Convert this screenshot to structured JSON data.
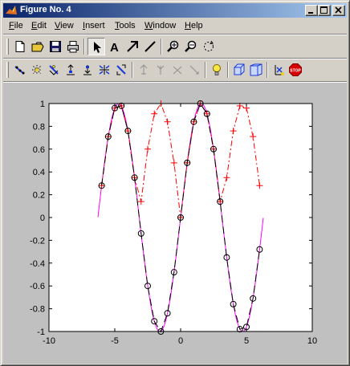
{
  "window": {
    "title": "Figure No. 4"
  },
  "menu": [
    {
      "label": "File",
      "u": "F",
      "rest": "ile"
    },
    {
      "label": "Edit",
      "u": "E",
      "rest": "dit"
    },
    {
      "label": "View",
      "u": "V",
      "rest": "iew"
    },
    {
      "label": "Insert",
      "u": "I",
      "rest": "nsert"
    },
    {
      "label": "Tools",
      "u": "T",
      "rest": "ools"
    },
    {
      "label": "Window",
      "u": "W",
      "rest": "indow"
    },
    {
      "label": "Help",
      "u": "H",
      "rest": "elp"
    }
  ],
  "toolbar_icons": {
    "main": [
      "new-figure-icon",
      "open-file-icon",
      "save-icon",
      "print-icon",
      "edit-plot-arrow-icon",
      "insert-text-icon",
      "insert-arrow-icon",
      "insert-line-icon",
      "zoom-in-icon",
      "zoom-out-icon",
      "rotate-3d-icon"
    ],
    "camera": [
      "orbit-camera-icon",
      "orbit-light-icon",
      "pan-tilt-camera-icon",
      "move-camera-icon",
      "move-camera-forward-icon",
      "zoom-camera-icon",
      "roll-camera-icon",
      "principal-axis-x-icon",
      "principal-axis-y-icon",
      "principal-axis-z-icon",
      "principal-axis-none-icon",
      "scene-light-icon",
      "orthographic-projection-icon",
      "perspective-projection-icon",
      "reset-camera-icon",
      "stop-camera-icon"
    ]
  },
  "stop_label": "STOP",
  "colors": {
    "title_start": "#0a246a",
    "title_end": "#a6caf0",
    "face": "#d4d0c8",
    "figure_bg": "#c0c0c0",
    "series_sin": "#ff00ff",
    "series_abs": "#ff0000",
    "series_markers": "#000000"
  },
  "chart_data": {
    "type": "line",
    "title": "",
    "xlabel": "",
    "ylabel": "",
    "xlim": [
      -10,
      10
    ],
    "ylim": [
      -1,
      1
    ],
    "xticks": [
      "-10",
      "-5",
      "0",
      "5",
      "10"
    ],
    "yticks": [
      "-1",
      "-0.8",
      "-0.6",
      "-0.4",
      "-0.2",
      "0",
      "0.2",
      "0.4",
      "0.6",
      "0.8",
      "1"
    ],
    "grid": false,
    "legend": "none",
    "series": [
      {
        "style": "solid magenta line",
        "function": "sin(x)",
        "x": [
          -6.28,
          -5.5,
          -4.71,
          -3.93,
          -3.14,
          -2.36,
          -1.57,
          -0.79,
          0,
          0.79,
          1.57,
          2.36,
          3.14,
          3.93,
          4.71,
          5.5,
          6.28
        ],
        "values": [
          0,
          0.71,
          1,
          0.71,
          0,
          -0.71,
          -1,
          -0.71,
          0,
          0.71,
          1,
          0.71,
          0,
          -0.71,
          -1,
          -0.71,
          0
        ]
      },
      {
        "style": "red dash-dot line with + markers",
        "function": "|sin(x)|",
        "x": [
          -6.0,
          -5.5,
          -5.0,
          -4.5,
          -4.0,
          -3.5,
          -3.0,
          -2.5,
          -2.0,
          -1.5,
          -1.0,
          -0.5,
          0,
          0.5,
          1.0,
          1.5,
          2.0,
          2.5,
          3.0,
          3.5,
          4.0,
          4.5,
          5.0,
          5.5,
          6.0
        ],
        "values": [
          0.28,
          0.71,
          0.96,
          0.98,
          0.76,
          0.35,
          0.14,
          0.6,
          0.91,
          1.0,
          0.84,
          0.48,
          0,
          0.48,
          0.84,
          1.0,
          0.91,
          0.6,
          0.14,
          0.35,
          0.76,
          0.98,
          0.96,
          0.71,
          0.28
        ]
      },
      {
        "style": "black long-dash line with circle markers",
        "function": "sin(x)",
        "x": [
          -6.0,
          -5.5,
          -5.0,
          -4.5,
          -4.0,
          -3.5,
          -3.0,
          -2.5,
          -2.0,
          -1.5,
          -1.0,
          -0.5,
          0,
          0.5,
          1.0,
          1.5,
          2.0,
          2.5,
          3.0,
          3.5,
          4.0,
          4.5,
          5.0,
          5.5,
          6.0
        ],
        "values": [
          0.28,
          0.71,
          0.96,
          0.98,
          0.76,
          0.35,
          -0.14,
          -0.6,
          -0.91,
          -1.0,
          -0.84,
          -0.48,
          0,
          0.48,
          0.84,
          1.0,
          0.91,
          0.6,
          0.14,
          -0.35,
          -0.76,
          -0.98,
          -0.96,
          -0.71,
          -0.28
        ]
      }
    ]
  }
}
